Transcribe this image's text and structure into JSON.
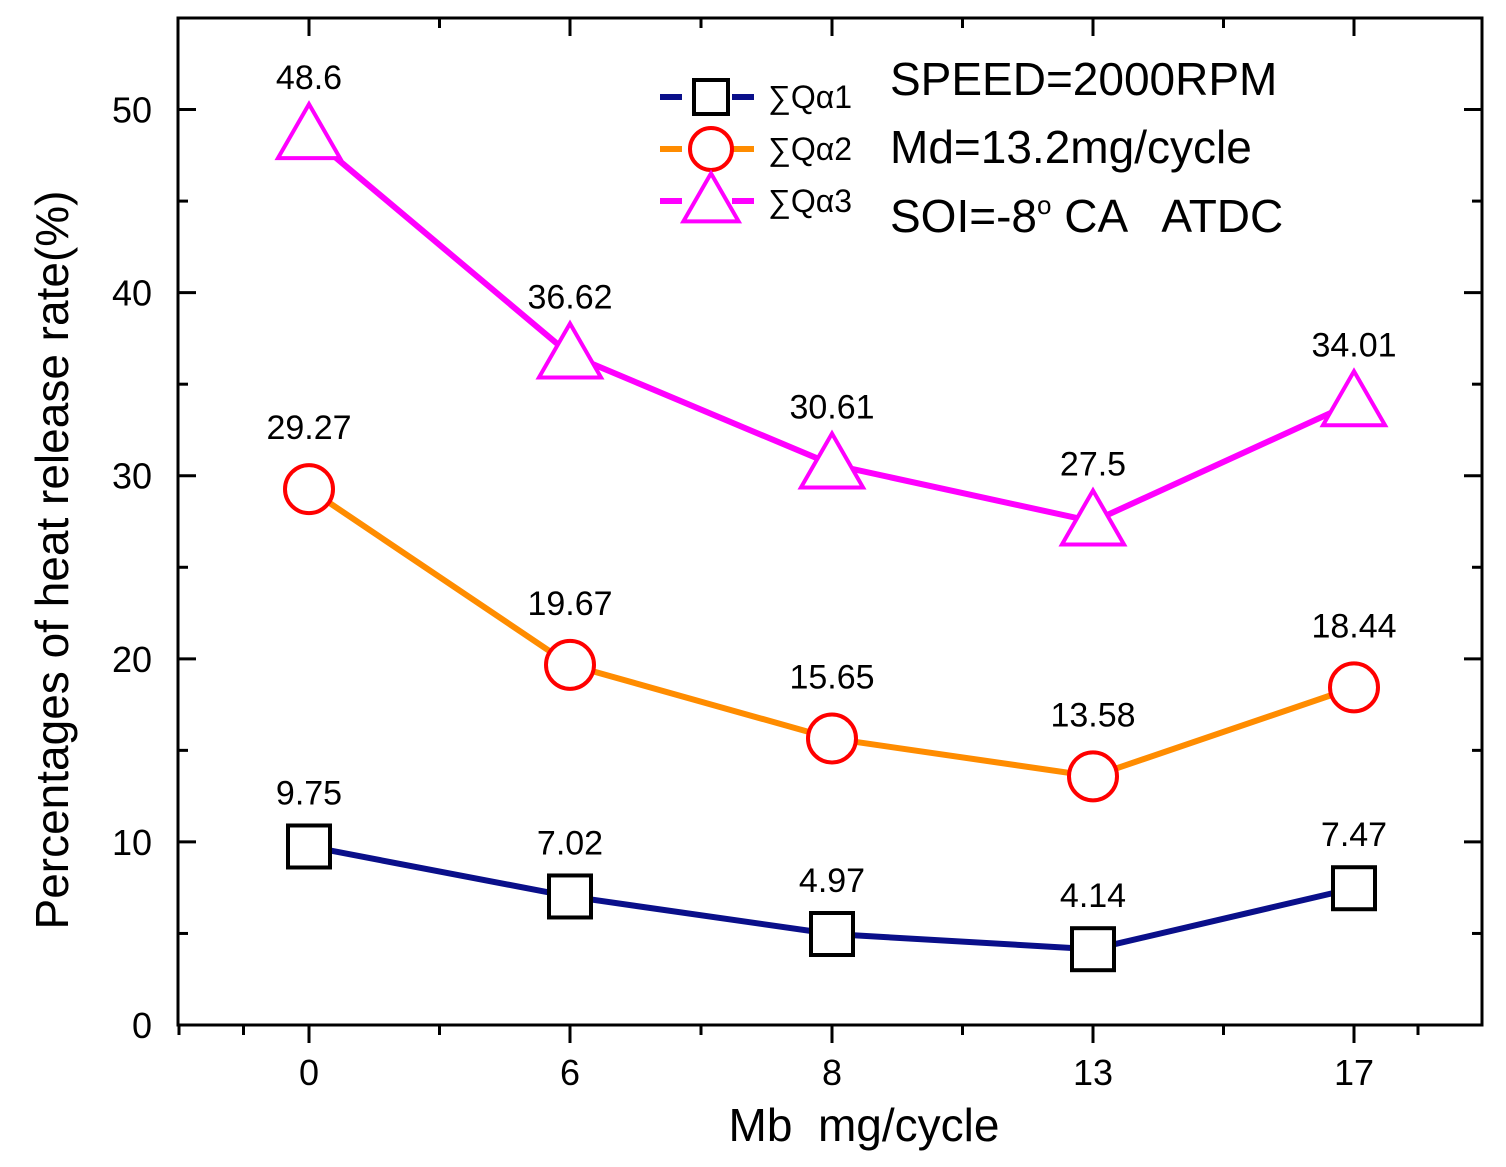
{
  "chart_data": {
    "type": "line",
    "xlabel": "Mb  mg/cycle",
    "ylabel": "Percentages of heat release rate(%)",
    "categories": [
      "0",
      "6",
      "8",
      "13",
      "17"
    ],
    "ylim": [
      0,
      55
    ],
    "yticks": [
      0,
      10,
      20,
      30,
      40,
      50
    ],
    "series": [
      {
        "name": "∑Qα1",
        "marker": "square",
        "line_color": "#0a0f8a",
        "marker_color": "#000000",
        "values": [
          9.75,
          7.02,
          4.97,
          4.14,
          7.47
        ],
        "labels": [
          "9.75",
          "7.02",
          "4.97",
          "4.14",
          "7.47"
        ]
      },
      {
        "name": "∑Qα2",
        "marker": "circle",
        "line_color": "#ff8c00",
        "marker_color": "#ff0000",
        "values": [
          29.27,
          19.67,
          15.65,
          13.58,
          18.44
        ],
        "labels": [
          "29.27",
          "19.67",
          "15.65",
          "13.58",
          "18.44"
        ]
      },
      {
        "name": "∑Qα3",
        "marker": "triangle",
        "line_color": "#ff00ff",
        "marker_color": "#ff00ff",
        "values": [
          48.6,
          36.62,
          30.61,
          27.5,
          34.01
        ],
        "labels": [
          "48.6",
          "36.62",
          "30.61",
          "27.5",
          "34.01"
        ]
      }
    ],
    "annotations": [
      "SPEED=2000RPM",
      "Md=13.2mg/cycle",
      "SOI=-8",
      "o",
      " CA   ATDC"
    ],
    "legend_position": "top-right"
  }
}
